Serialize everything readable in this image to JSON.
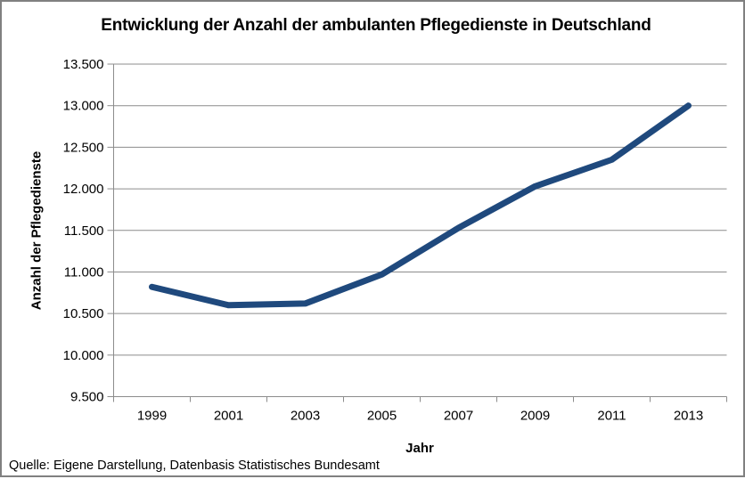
{
  "chart_data": {
    "type": "line",
    "title": "Entwicklung der Anzahl der ambulanten Pflegedienste in Deutschland",
    "categories": [
      "1999",
      "2001",
      "2003",
      "2005",
      "2007",
      "2009",
      "2011",
      "2013"
    ],
    "values": [
      10820,
      10600,
      10620,
      10970,
      11530,
      12030,
      12350,
      13000
    ],
    "series_name": "Anzahl der ambulanten Pflegedienste",
    "xlabel": "Jahr",
    "ylabel": "Anzahl der Pflegedienste",
    "ylim": [
      9500,
      13500
    ],
    "ytick_step": 500,
    "ytick_labels": [
      "9.500",
      "10.000",
      "10.500",
      "11.000",
      "11.500",
      "12.000",
      "12.500",
      "13.000",
      "13.500"
    ],
    "grid": true,
    "legend": "none",
    "line_color": "#1F497D",
    "line_width": 7,
    "gridline_color": "#8C8C8C",
    "axis_color": "#8C8C8C",
    "source_note": "Quelle: Eigene Darstellung, Datenbasis Statistisches Bundesamt"
  }
}
